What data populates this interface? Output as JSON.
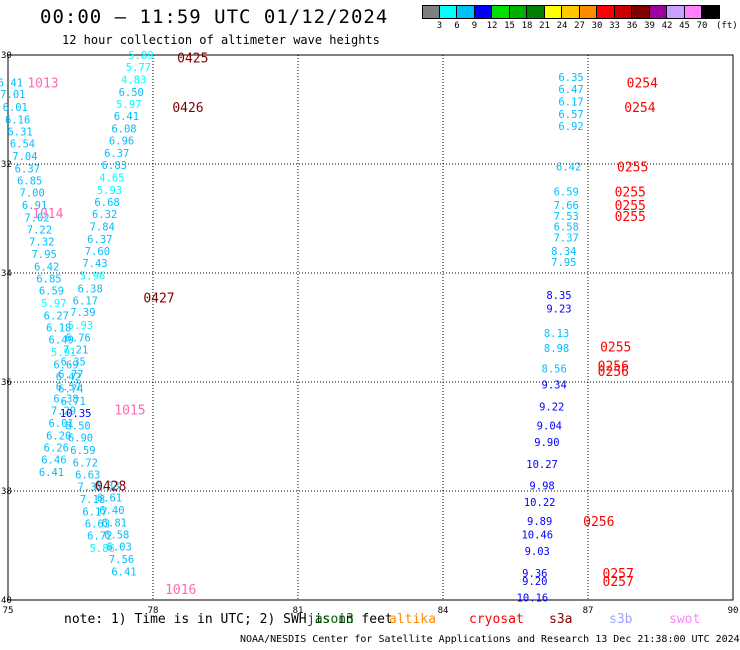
{
  "header": {
    "title": "00:00 – 11:59 UTC 01/12/2024",
    "subtitle": "12 hour collection of altimeter wave heights"
  },
  "colorbar": {
    "colors": [
      "#7f7f7f",
      "#00ffff",
      "#00bfff",
      "#0000ff",
      "#00e000",
      "#00b000",
      "#008000",
      "#ffff00",
      "#ffc800",
      "#ff8c00",
      "#ff0000",
      "#c80000",
      "#800000",
      "#a000a0",
      "#c8a0ff",
      "#ff80ff",
      "#000000"
    ],
    "labels": [
      "3",
      "6",
      "9",
      "12",
      "15",
      "18",
      "21",
      "24",
      "27",
      "30",
      "33",
      "36",
      "39",
      "42",
      "45",
      "70"
    ],
    "unit": "(ft)"
  },
  "map": {
    "lat_ticks": [
      "30",
      "32",
      "34",
      "36",
      "38",
      "40"
    ],
    "lon_ticks": [
      "75",
      "78",
      "81",
      "84",
      "87",
      "90"
    ]
  },
  "footer": {
    "note": "note: 1) Time is in UTC; 2) SWH is in feet",
    "satellites": [
      {
        "name": "jason3",
        "color": "#006400"
      },
      {
        "name": "altika",
        "color": "#ff8c00"
      },
      {
        "name": "cryosat",
        "color": "#ff0000"
      },
      {
        "name": "s3a",
        "color": "#800000"
      },
      {
        "name": "s3b",
        "color": "#a0a0ff"
      },
      {
        "name": "swot",
        "color": "#ff80ff"
      }
    ],
    "credit": "NOAA/NESDIS Center for Satellite Applications and Research  13 Dec 21:38:00 UTC 2024"
  },
  "track_labels": [
    {
      "text": "0425",
      "color": "#800000",
      "lat": 30.05,
      "lon": 78.5
    },
    {
      "text": "0426",
      "color": "#800000",
      "lat": 30.95,
      "lon": 78.4
    },
    {
      "text": "0427",
      "color": "#800000",
      "lat": 34.45,
      "lon": 77.8
    },
    {
      "text": "0428",
      "color": "#800000",
      "lat": 37.9,
      "lon": 76.8
    },
    {
      "text": "1013",
      "color": "#ff69b4",
      "lat": 30.5,
      "lon": 75.4
    },
    {
      "text": "1014",
      "color": "#ff69b4",
      "lat": 32.9,
      "lon": 75.5
    },
    {
      "text": "1015",
      "color": "#ff69b4",
      "lat": 36.5,
      "lon": 77.2
    },
    {
      "text": "1016",
      "color": "#ff69b4",
      "lat": 39.8,
      "lon": 78.25
    },
    {
      "text": "0254",
      "color": "#ff0000",
      "lat": 30.5,
      "lon": 87.8
    },
    {
      "text": "0254",
      "color": "#ff0000",
      "lat": 30.95,
      "lon": 87.75
    },
    {
      "text": "0255",
      "color": "#ff0000",
      "lat": 32.05,
      "lon": 87.6
    },
    {
      "text": "0255",
      "color": "#ff0000",
      "lat": 32.5,
      "lon": 87.55
    },
    {
      "text": "0255",
      "color": "#ff0000",
      "lat": 32.75,
      "lon": 87.55
    },
    {
      "text": "0255",
      "color": "#ff0000",
      "lat": 32.95,
      "lon": 87.55
    },
    {
      "text": "0255",
      "color": "#ff0000",
      "lat": 35.35,
      "lon": 87.25
    },
    {
      "text": "0256",
      "color": "#ff0000",
      "lat": 35.7,
      "lon": 87.2
    },
    {
      "text": "0256",
      "color": "#ff0000",
      "lat": 35.8,
      "lon": 87.2
    },
    {
      "text": "0256",
      "color": "#ff0000",
      "lat": 38.55,
      "lon": 86.9
    },
    {
      "text": "0257",
      "color": "#ff0000",
      "lat": 39.5,
      "lon": 87.3
    },
    {
      "text": "0257",
      "color": "#ff0000",
      "lat": 39.65,
      "lon": 87.3
    }
  ],
  "wave_values": [
    {
      "v": "5.89",
      "c": "#00ffff",
      "lat": 30.0,
      "lon": 77.75
    },
    {
      "v": "5.77",
      "c": "#00ffff",
      "lat": 30.22,
      "lon": 77.7
    },
    {
      "v": "4.83",
      "c": "#00ffff",
      "lat": 30.45,
      "lon": 77.6
    },
    {
      "v": "6.50",
      "c": "#00bfff",
      "lat": 30.68,
      "lon": 77.55
    },
    {
      "v": "5.97",
      "c": "#00ffff",
      "lat": 30.9,
      "lon": 77.5
    },
    {
      "v": "6.41",
      "c": "#00bfff",
      "lat": 31.12,
      "lon": 77.45
    },
    {
      "v": "6.08",
      "c": "#00bfff",
      "lat": 31.35,
      "lon": 77.4
    },
    {
      "v": "6.96",
      "c": "#00bfff",
      "lat": 31.57,
      "lon": 77.35
    },
    {
      "v": "6.37",
      "c": "#00bfff",
      "lat": 31.8,
      "lon": 77.25
    },
    {
      "v": "6.83",
      "c": "#00bfff",
      "lat": 32.02,
      "lon": 77.2
    },
    {
      "v": "4.65",
      "c": "#00ffff",
      "lat": 32.25,
      "lon": 77.15
    },
    {
      "v": "5.93",
      "c": "#00ffff",
      "lat": 32.48,
      "lon": 77.1
    },
    {
      "v": "6.68",
      "c": "#00bfff",
      "lat": 32.7,
      "lon": 77.05
    },
    {
      "v": "6.32",
      "c": "#00bfff",
      "lat": 32.92,
      "lon": 77.0
    },
    {
      "v": "7.84",
      "c": "#00bfff",
      "lat": 33.15,
      "lon": 76.95
    },
    {
      "v": "6.37",
      "c": "#00bfff",
      "lat": 33.38,
      "lon": 76.9
    },
    {
      "v": "7.60",
      "c": "#00bfff",
      "lat": 33.6,
      "lon": 76.85
    },
    {
      "v": "7.43",
      "c": "#00bfff",
      "lat": 33.82,
      "lon": 76.8
    },
    {
      "v": "5.96",
      "c": "#00ffff",
      "lat": 34.05,
      "lon": 76.75
    },
    {
      "v": "6.38",
      "c": "#00bfff",
      "lat": 34.28,
      "lon": 76.7
    },
    {
      "v": "6.17",
      "c": "#00bfff",
      "lat": 34.5,
      "lon": 76.6
    },
    {
      "v": "7.39",
      "c": "#00bfff",
      "lat": 34.72,
      "lon": 76.55
    },
    {
      "v": "5.93",
      "c": "#00ffff",
      "lat": 34.95,
      "lon": 76.5
    },
    {
      "v": "6.76",
      "c": "#00bfff",
      "lat": 35.18,
      "lon": 76.45
    },
    {
      "v": "7.21",
      "c": "#00bfff",
      "lat": 35.4,
      "lon": 76.4
    },
    {
      "v": "6.35",
      "c": "#00bfff",
      "lat": 35.62,
      "lon": 76.35
    },
    {
      "v": "6.77",
      "c": "#00bfff",
      "lat": 35.85,
      "lon": 76.3
    },
    {
      "v": "6.57",
      "c": "#00bfff",
      "lat": 36.08,
      "lon": 76.25
    },
    {
      "v": "6.38",
      "c": "#00bfff",
      "lat": 36.3,
      "lon": 76.2
    },
    {
      "v": "7.29",
      "c": "#00bfff",
      "lat": 36.52,
      "lon": 76.15
    },
    {
      "v": "6.01",
      "c": "#00bfff",
      "lat": 36.75,
      "lon": 76.1
    },
    {
      "v": "6.20",
      "c": "#00bfff",
      "lat": 36.98,
      "lon": 76.05
    },
    {
      "v": "6.26",
      "c": "#00bfff",
      "lat": 37.2,
      "lon": 76.0
    },
    {
      "v": "6.46",
      "c": "#00bfff",
      "lat": 37.42,
      "lon": 75.95
    },
    {
      "v": "6.41",
      "c": "#00bfff",
      "lat": 37.65,
      "lon": 75.9
    },
    {
      "v": "6.41",
      "c": "#00bfff",
      "lat": 30.5,
      "lon": 75.05
    },
    {
      "v": "7.01",
      "c": "#00bfff",
      "lat": 30.72,
      "lon": 75.1
    },
    {
      "v": "6.01",
      "c": "#00bfff",
      "lat": 30.95,
      "lon": 75.15
    },
    {
      "v": "6.16",
      "c": "#00bfff",
      "lat": 31.18,
      "lon": 75.2
    },
    {
      "v": "6.31",
      "c": "#00bfff",
      "lat": 31.4,
      "lon": 75.25
    },
    {
      "v": "6.54",
      "c": "#00bfff",
      "lat": 31.62,
      "lon": 75.3
    },
    {
      "v": "7.04",
      "c": "#00bfff",
      "lat": 31.85,
      "lon": 75.35
    },
    {
      "v": "6.37",
      "c": "#00bfff",
      "lat": 32.08,
      "lon": 75.4
    },
    {
      "v": "6.85",
      "c": "#00bfff",
      "lat": 32.3,
      "lon": 75.45
    },
    {
      "v": "7.00",
      "c": "#00bfff",
      "lat": 32.52,
      "lon": 75.5
    },
    {
      "v": "6.91",
      "c": "#00bfff",
      "lat": 32.75,
      "lon": 75.55
    },
    {
      "v": "7.02",
      "c": "#00bfff",
      "lat": 32.98,
      "lon": 75.6
    },
    {
      "v": "7.22",
      "c": "#00bfff",
      "lat": 33.2,
      "lon": 75.65
    },
    {
      "v": "7.32",
      "c": "#00bfff",
      "lat": 33.42,
      "lon": 75.7
    },
    {
      "v": "7.95",
      "c": "#00bfff",
      "lat": 33.65,
      "lon": 75.75
    },
    {
      "v": "6.42",
      "c": "#00bfff",
      "lat": 33.88,
      "lon": 75.8
    },
    {
      "v": "6.85",
      "c": "#00bfff",
      "lat": 34.1,
      "lon": 75.85
    },
    {
      "v": "6.59",
      "c": "#00bfff",
      "lat": 34.32,
      "lon": 75.9
    },
    {
      "v": "5.97",
      "c": "#00ffff",
      "lat": 34.55,
      "lon": 75.95
    },
    {
      "v": "6.27",
      "c": "#00bfff",
      "lat": 34.78,
      "lon": 76.0
    },
    {
      "v": "6.18",
      "c": "#00bfff",
      "lat": 35.0,
      "lon": 76.05
    },
    {
      "v": "6.49",
      "c": "#00bfff",
      "lat": 35.22,
      "lon": 76.1
    },
    {
      "v": "5.91",
      "c": "#00ffff",
      "lat": 35.45,
      "lon": 76.15
    },
    {
      "v": "6.69",
      "c": "#00bfff",
      "lat": 35.68,
      "lon": 76.2
    },
    {
      "v": "6.42",
      "c": "#00bfff",
      "lat": 35.9,
      "lon": 76.25
    },
    {
      "v": "6.74",
      "c": "#00bfff",
      "lat": 36.12,
      "lon": 76.3
    },
    {
      "v": "6.71",
      "c": "#00bfff",
      "lat": 36.35,
      "lon": 76.35
    },
    {
      "v": "10.35",
      "c": "#0000ff",
      "lat": 36.57,
      "lon": 76.4
    },
    {
      "v": "8.50",
      "c": "#00bfff",
      "lat": 36.8,
      "lon": 76.45
    },
    {
      "v": "6.90",
      "c": "#00bfff",
      "lat": 37.02,
      "lon": 76.5
    },
    {
      "v": "6.59",
      "c": "#00bfff",
      "lat": 37.25,
      "lon": 76.55
    },
    {
      "v": "6.72",
      "c": "#00bfff",
      "lat": 37.48,
      "lon": 76.6
    },
    {
      "v": "6.63",
      "c": "#00bfff",
      "lat": 37.7,
      "lon": 76.65
    },
    {
      "v": "7.35",
      "c": "#00bfff",
      "lat": 37.92,
      "lon": 76.7
    },
    {
      "v": "7.18",
      "c": "#00bfff",
      "lat": 38.15,
      "lon": 76.75
    },
    {
      "v": "6.17",
      "c": "#00bfff",
      "lat": 38.38,
      "lon": 76.8
    },
    {
      "v": "6.63",
      "c": "#00bfff",
      "lat": 38.6,
      "lon": 76.85
    },
    {
      "v": "6.72",
      "c": "#00bfff",
      "lat": 38.82,
      "lon": 76.9
    },
    {
      "v": "5.86",
      "c": "#00ffff",
      "lat": 39.05,
      "lon": 76.95
    },
    {
      "v": "6.33",
      "c": "#00bfff",
      "lat": 37.9,
      "lon": 77.05
    },
    {
      "v": "6.61",
      "c": "#00bfff",
      "lat": 38.12,
      "lon": 77.1
    },
    {
      "v": "6.40",
      "c": "#00bfff",
      "lat": 38.35,
      "lon": 77.15
    },
    {
      "v": "6.81",
      "c": "#00bfff",
      "lat": 38.58,
      "lon": 77.2
    },
    {
      "v": "6.58",
      "c": "#00bfff",
      "lat": 38.8,
      "lon": 77.25
    },
    {
      "v": "6.03",
      "c": "#00bfff",
      "lat": 39.02,
      "lon": 77.3
    },
    {
      "v": "7.56",
      "c": "#00bfff",
      "lat": 39.25,
      "lon": 77.35
    },
    {
      "v": "6.41",
      "c": "#00bfff",
      "lat": 39.48,
      "lon": 77.4
    },
    {
      "v": "6.35",
      "c": "#00bfff",
      "lat": 30.4,
      "lon": 86.65
    },
    {
      "v": "6.47",
      "c": "#00bfff",
      "lat": 30.62,
      "lon": 86.65
    },
    {
      "v": "6.17",
      "c": "#00bfff",
      "lat": 30.85,
      "lon": 86.65
    },
    {
      "v": "6.57",
      "c": "#00bfff",
      "lat": 31.08,
      "lon": 86.65
    },
    {
      "v": "6.92",
      "c": "#00bfff",
      "lat": 31.3,
      "lon": 86.65
    },
    {
      "v": "6.42",
      "c": "#00bfff",
      "lat": 32.05,
      "lon": 86.6
    },
    {
      "v": "6.59",
      "c": "#00bfff",
      "lat": 32.5,
      "lon": 86.55
    },
    {
      "v": "7.66",
      "c": "#00bfff",
      "lat": 32.75,
      "lon": 86.55
    },
    {
      "v": "7.53",
      "c": "#00bfff",
      "lat": 32.95,
      "lon": 86.55
    },
    {
      "v": "6.58",
      "c": "#00bfff",
      "lat": 33.15,
      "lon": 86.55
    },
    {
      "v": "7.37",
      "c": "#00bfff",
      "lat": 33.35,
      "lon": 86.55
    },
    {
      "v": "8.34",
      "c": "#00bfff",
      "lat": 33.6,
      "lon": 86.5
    },
    {
      "v": "7.95",
      "c": "#00bfff",
      "lat": 33.8,
      "lon": 86.5
    },
    {
      "v": "8.35",
      "c": "#0000ff",
      "lat": 34.4,
      "lon": 86.4
    },
    {
      "v": "9.23",
      "c": "#0000ff",
      "lat": 34.65,
      "lon": 86.4
    },
    {
      "v": "8.13",
      "c": "#00bfff",
      "lat": 35.1,
      "lon": 86.35
    },
    {
      "v": "8.98",
      "c": "#00bfff",
      "lat": 35.38,
      "lon": 86.35
    },
    {
      "v": "8.56",
      "c": "#00bfff",
      "lat": 35.75,
      "lon": 86.3
    },
    {
      "v": "9.34",
      "c": "#0000ff",
      "lat": 36.05,
      "lon": 86.3
    },
    {
      "v": "9.22",
      "c": "#0000ff",
      "lat": 36.45,
      "lon": 86.25
    },
    {
      "v": "9.04",
      "c": "#0000ff",
      "lat": 36.8,
      "lon": 86.2
    },
    {
      "v": "9.90",
      "c": "#0000ff",
      "lat": 37.1,
      "lon": 86.15
    },
    {
      "v": "10.27",
      "c": "#0000ff",
      "lat": 37.5,
      "lon": 86.05
    },
    {
      "v": "9.98",
      "c": "#0000ff",
      "lat": 37.9,
      "lon": 86.05
    },
    {
      "v": "10.22",
      "c": "#0000ff",
      "lat": 38.2,
      "lon": 86.0
    },
    {
      "v": "9.89",
      "c": "#0000ff",
      "lat": 38.55,
      "lon": 86.0
    },
    {
      "v": "10.46",
      "c": "#0000ff",
      "lat": 38.8,
      "lon": 85.95
    },
    {
      "v": "9.03",
      "c": "#0000ff",
      "lat": 39.1,
      "lon": 85.95
    },
    {
      "v": "9.36",
      "c": "#0000ff",
      "lat": 39.5,
      "lon": 85.9
    },
    {
      "v": "9.20",
      "c": "#0000ff",
      "lat": 39.65,
      "lon": 85.9
    },
    {
      "v": "10.16",
      "c": "#0000ff",
      "lat": 39.95,
      "lon": 85.85
    }
  ]
}
